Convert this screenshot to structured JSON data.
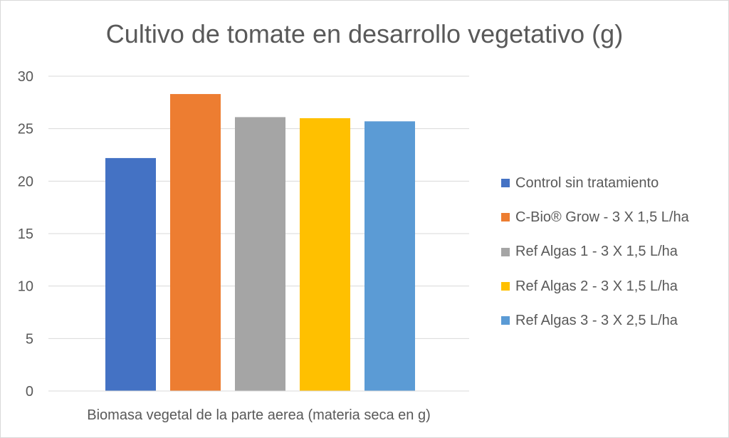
{
  "chart_data": {
    "type": "bar",
    "title": "Cultivo de tomate en desarrollo vegetativo (g)",
    "categories": [
      "Biomasa vegetal de la parte aerea (materia seca en g)"
    ],
    "xlabel": "",
    "ylabel": "",
    "ylim": [
      0,
      30
    ],
    "yticks": [
      "0",
      "5",
      "10",
      "15",
      "20",
      "25",
      "30"
    ],
    "grid": true,
    "legend_position": "right",
    "series": [
      {
        "name": "Control sin tratamiento",
        "values": [
          22.2
        ],
        "color": "#4472C4"
      },
      {
        "name": "C-Bio® Grow - 3 X 1,5 L/ha",
        "values": [
          28.3
        ],
        "color": "#ED7D31"
      },
      {
        "name": "Ref Algas 1 - 3 X 1,5 L/ha",
        "values": [
          26.1
        ],
        "color": "#A5A5A5"
      },
      {
        "name": "Ref Algas 2 - 3 X 1,5 L/ha",
        "values": [
          26.0
        ],
        "color": "#FFC000"
      },
      {
        "name": "Ref Algas 3 - 3 X 2,5 L/ha",
        "values": [
          25.7
        ],
        "color": "#5B9BD5"
      }
    ]
  }
}
